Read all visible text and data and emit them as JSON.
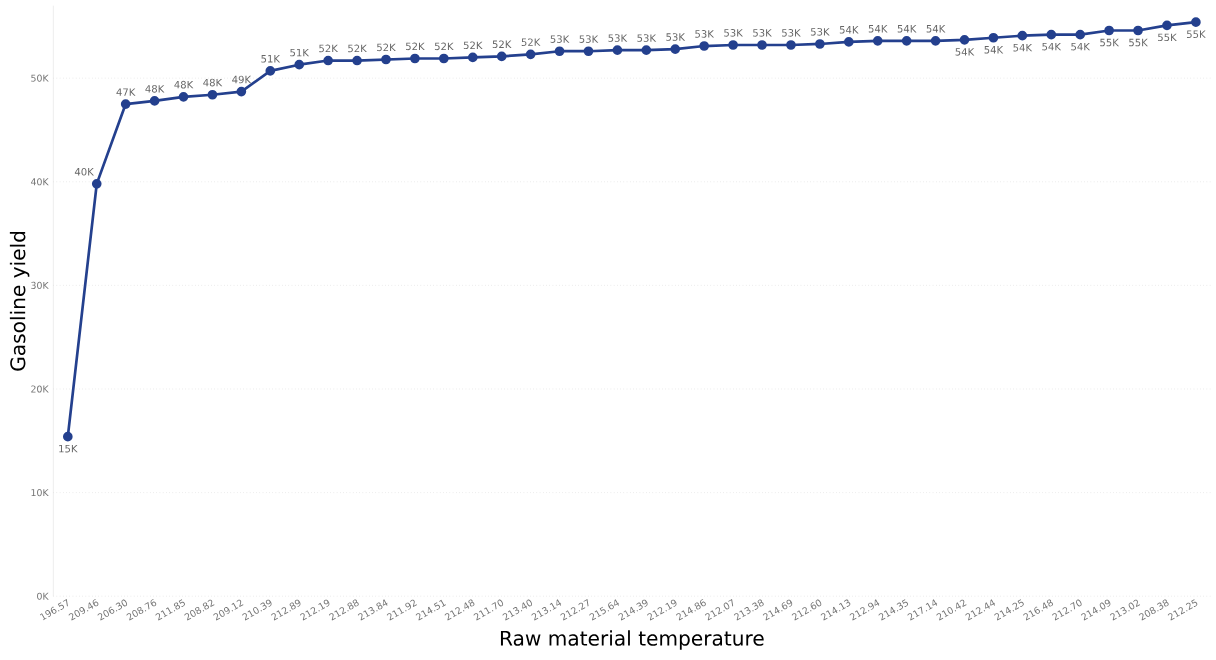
{
  "chart_data": {
    "type": "line",
    "xlabel": "Raw material temperature",
    "ylabel": "Gasoline yield",
    "categories": [
      "196.57",
      "209.46",
      "206.30",
      "208.76",
      "211.85",
      "208.82",
      "209.12",
      "210.39",
      "212.89",
      "212.19",
      "212.88",
      "213.84",
      "211.92",
      "214.51",
      "212.48",
      "211.70",
      "213.40",
      "213.14",
      "212.27",
      "215.64",
      "214.39",
      "212.19",
      "214.86",
      "212.07",
      "213.38",
      "214.69",
      "212.60",
      "214.13",
      "212.94",
      "214.35",
      "217.14",
      "210.42",
      "212.44",
      "214.25",
      "216.48",
      "212.70",
      "214.09",
      "213.02",
      "208.38",
      "212.25"
    ],
    "series": [
      {
        "color": "#24408e",
        "values": [
          15400,
          39800,
          47500,
          47800,
          48200,
          48400,
          48700,
          50700,
          51300,
          51700,
          51700,
          51800,
          51900,
          51900,
          52000,
          52100,
          52300,
          52600,
          52600,
          52700,
          52700,
          52800,
          53100,
          53200,
          53200,
          53200,
          53300,
          53500,
          53600,
          53600,
          53600,
          53700,
          53900,
          54100,
          54200,
          54200,
          54600,
          54600,
          55100,
          55400
        ],
        "value_labels": [
          "15K",
          "40K",
          "47K",
          "48K",
          "48K",
          "48K",
          "49K",
          "51K",
          "51K",
          "52K",
          "52K",
          "52K",
          "52K",
          "52K",
          "52K",
          "52K",
          "52K",
          "53K",
          "53K",
          "53K",
          "53K",
          "53K",
          "53K",
          "53K",
          "53K",
          "53K",
          "53K",
          "54K",
          "54K",
          "54K",
          "54K",
          "54K",
          "54K",
          "54K",
          "54K",
          "54K",
          "55K",
          "55K",
          "55K",
          "55K"
        ]
      }
    ],
    "yticks": [
      {
        "value": 0,
        "label": "0K"
      },
      {
        "value": 10000,
        "label": "10K"
      },
      {
        "value": 20000,
        "label": "20K"
      },
      {
        "value": 30000,
        "label": "30K"
      },
      {
        "value": 40000,
        "label": "40K"
      },
      {
        "value": 50000,
        "label": "50K"
      }
    ],
    "ylim": [
      0,
      57000
    ],
    "grid": "y",
    "marker": "circle",
    "line_style": "solid"
  }
}
